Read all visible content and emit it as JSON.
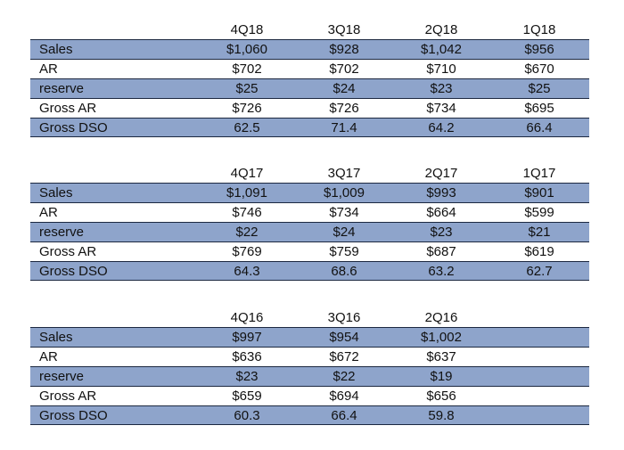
{
  "tables": [
    {
      "headers": [
        "4Q18",
        "3Q18",
        "2Q18",
        "1Q18"
      ],
      "rows": [
        {
          "label": "Sales",
          "values": [
            "$1,060",
            "$928",
            "$1,042",
            "$956"
          ]
        },
        {
          "label": "AR",
          "values": [
            "$702",
            "$702",
            "$710",
            "$670"
          ]
        },
        {
          "label": "reserve",
          "values": [
            "$25",
            "$24",
            "$23",
            "$25"
          ]
        },
        {
          "label": "Gross AR",
          "values": [
            "$726",
            "$726",
            "$734",
            "$695"
          ]
        },
        {
          "label": "Gross DSO",
          "values": [
            "62.5",
            "71.4",
            "64.2",
            "66.4"
          ]
        }
      ]
    },
    {
      "headers": [
        "4Q17",
        "3Q17",
        "2Q17",
        "1Q17"
      ],
      "rows": [
        {
          "label": "Sales",
          "values": [
            "$1,091",
            "$1,009",
            "$993",
            "$901"
          ]
        },
        {
          "label": "AR",
          "values": [
            "$746",
            "$734",
            "$664",
            "$599"
          ]
        },
        {
          "label": "reserve",
          "values": [
            "$22",
            "$24",
            "$23",
            "$21"
          ]
        },
        {
          "label": "Gross AR",
          "values": [
            "$769",
            "$759",
            "$687",
            "$619"
          ]
        },
        {
          "label": "Gross DSO",
          "values": [
            "64.3",
            "68.6",
            "63.2",
            "62.7"
          ]
        }
      ]
    },
    {
      "headers": [
        "4Q16",
        "3Q16",
        "2Q16",
        ""
      ],
      "rows": [
        {
          "label": "Sales",
          "values": [
            "$997",
            "$954",
            "$1,002",
            ""
          ]
        },
        {
          "label": "AR",
          "values": [
            "$636",
            "$672",
            "$637",
            ""
          ]
        },
        {
          "label": "reserve",
          "values": [
            "$23",
            "$22",
            "$19",
            ""
          ]
        },
        {
          "label": "Gross AR",
          "values": [
            "$659",
            "$694",
            "$656",
            ""
          ]
        },
        {
          "label": "Gross DSO",
          "values": [
            "60.3",
            "66.4",
            "59.8",
            ""
          ]
        }
      ]
    }
  ]
}
